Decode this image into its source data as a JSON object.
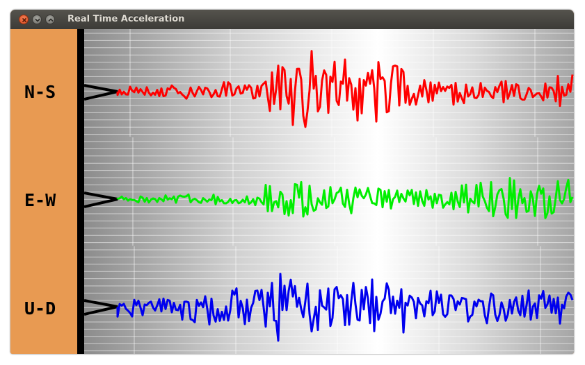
{
  "window": {
    "title": "Real Time Acceleration",
    "controls": [
      "close-icon",
      "minimize-icon",
      "maximize-icon"
    ]
  },
  "channels": [
    {
      "label": "N-S",
      "color": "#ff0000"
    },
    {
      "label": "E-W",
      "color": "#00ee00"
    },
    {
      "label": "U-D",
      "color": "#0000ee"
    }
  ],
  "colors": {
    "panel": "#e89a52",
    "titlebar": "#3c3b37",
    "axis": "#000000"
  }
}
